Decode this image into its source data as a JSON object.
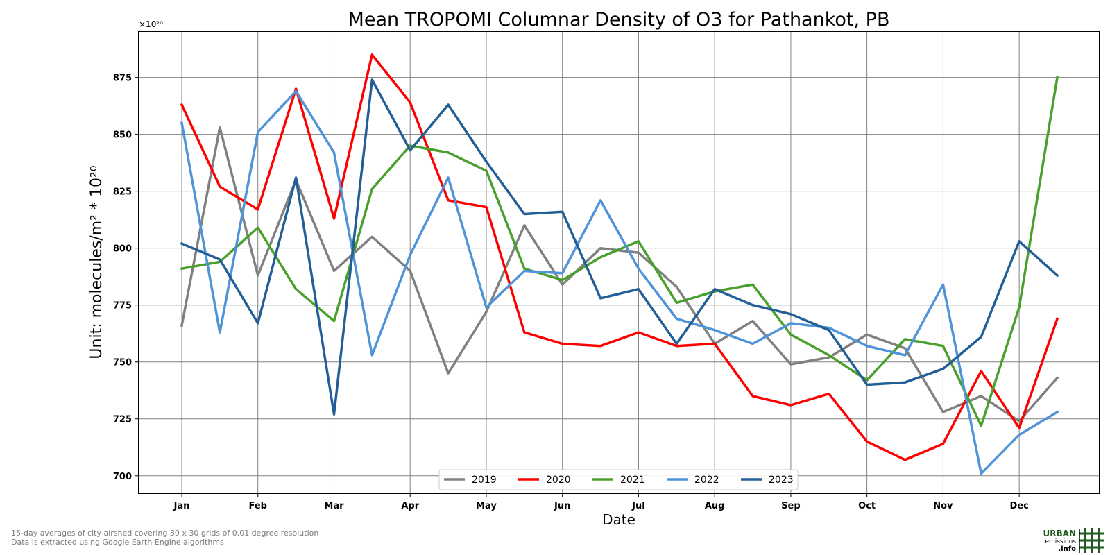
{
  "chart_data": {
    "type": "line",
    "title": "Mean TROPOMI Columnar Density of O3 for Pathankot, PB",
    "xlabel": "Date",
    "ylabel": "Unit: molecules/m² * 10²⁰",
    "offset_text": "×10²⁰",
    "ylim": [
      692,
      895
    ],
    "yticks": [
      700,
      725,
      750,
      775,
      800,
      825,
      850,
      875
    ],
    "ytick_labels": [
      "700",
      "725",
      "750",
      "775",
      "800",
      "825",
      "850",
      "875"
    ],
    "xtick_labels": [
      "Jan",
      "Feb",
      "Mar",
      "Apr",
      "May",
      "Jun",
      "Jul",
      "Aug",
      "Sep",
      "Oct",
      "Nov",
      "Dec"
    ],
    "grid": true,
    "legend_position": "bottom-center",
    "x": [
      "Jan 1",
      "Jan 16",
      "Feb 1",
      "Feb 16",
      "Mar 1",
      "Mar 16",
      "Apr 1",
      "Apr 16",
      "May 1",
      "May 16",
      "Jun 1",
      "Jun 16",
      "Jul 1",
      "Jul 16",
      "Aug 1",
      "Aug 16",
      "Sep 1",
      "Sep 16",
      "Oct 1",
      "Oct 16",
      "Nov 1",
      "Nov 16",
      "Dec 1",
      "Dec 16"
    ],
    "series": [
      {
        "name": "2019",
        "color": "#808080",
        "values": [
          766,
          853,
          788,
          830,
          790,
          805,
          790,
          745,
          772,
          810,
          784,
          800,
          798,
          783,
          758,
          768,
          749,
          752,
          762,
          756,
          728,
          735,
          724,
          743
        ]
      },
      {
        "name": "2020",
        "color": "#ff0000",
        "values": [
          863,
          827,
          817,
          870,
          813,
          885,
          864,
          821,
          818,
          763,
          758,
          757,
          763,
          757,
          758,
          735,
          731,
          736,
          715,
          707,
          714,
          746,
          721,
          769
        ]
      },
      {
        "name": "2021",
        "color": "#4aa02c",
        "values": [
          791,
          794,
          809,
          782,
          768,
          826,
          845,
          842,
          834,
          791,
          786,
          796,
          803,
          776,
          781,
          784,
          762,
          753,
          742,
          760,
          757,
          722,
          774,
          875
        ]
      },
      {
        "name": "2022",
        "color": "#4f94d8",
        "values": [
          855,
          763,
          851,
          869,
          842,
          753,
          797,
          831,
          774,
          790,
          789,
          821,
          791,
          769,
          764,
          758,
          767,
          765,
          757,
          753,
          784,
          701,
          718,
          728
        ]
      },
      {
        "name": "2023",
        "color": "#235f96",
        "values": [
          802,
          795,
          767,
          831,
          727,
          874,
          843,
          863,
          838,
          815,
          816,
          778,
          782,
          758,
          782,
          775,
          771,
          764,
          740,
          741,
          747,
          761,
          803,
          788
        ]
      }
    ]
  },
  "footnote": {
    "line1": "15-day averages of city airshed covering 30 x 30 grids of 0.01 degree resolution",
    "line2": "Data is extracted using Google Earth Engine algorithms"
  },
  "logo": {
    "line1": "URBAN",
    "line2": "emissions",
    "line3": ".info",
    "color": "#1f5a1f"
  }
}
